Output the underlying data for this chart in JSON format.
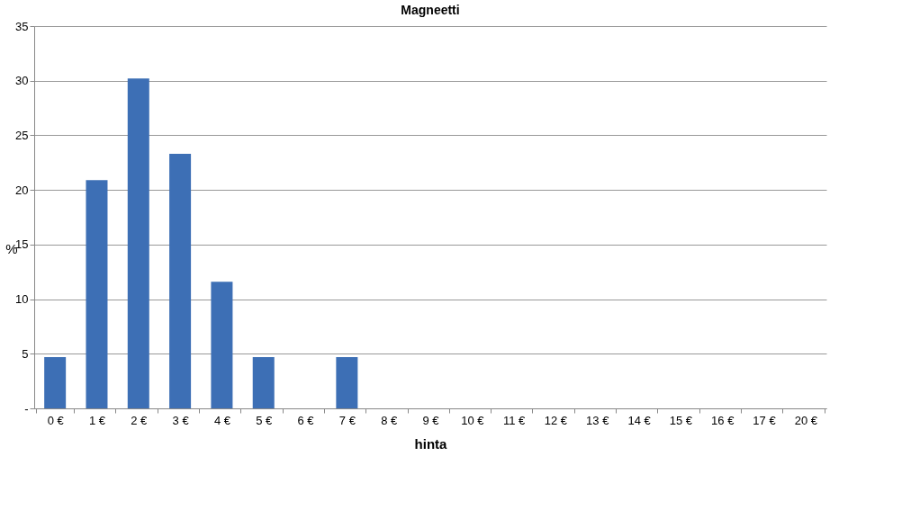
{
  "chart_data": {
    "type": "bar",
    "title": "Magneetti",
    "xlabel": "hinta",
    "ylabel": "%",
    "categories": [
      "0 €",
      "1 €",
      "2 €",
      "3 €",
      "4 €",
      "5 €",
      "6 €",
      "7 €",
      "8 €",
      "9 €",
      "10 €",
      "11 €",
      "12 €",
      "13 €",
      "14 €",
      "15 €",
      "16 €",
      "17 €",
      "20 €"
    ],
    "values": [
      4.7,
      20.9,
      30.2,
      23.3,
      11.6,
      4.7,
      0,
      4.7,
      0,
      0,
      0,
      0,
      0,
      0,
      0,
      0,
      0,
      0,
      0
    ],
    "color": "#3d6fb5",
    "ylim": [
      0,
      35
    ],
    "yticks": [
      {
        "value": 0,
        "label": "-"
      },
      5,
      10,
      15,
      20,
      25,
      30,
      35
    ],
    "grid": "y"
  }
}
